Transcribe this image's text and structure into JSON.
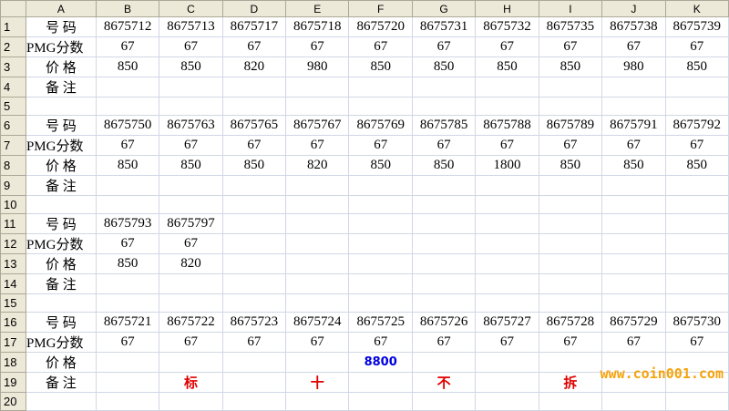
{
  "columns": [
    "A",
    "B",
    "C",
    "D",
    "E",
    "F",
    "G",
    "H",
    "I",
    "J",
    "K"
  ],
  "rows": [
    [
      "号  码",
      "8675712",
      "8675713",
      "8675717",
      "8675718",
      "8675720",
      "8675731",
      "8675732",
      "8675735",
      "8675738",
      "8675739"
    ],
    [
      "PMG分数",
      "67",
      "67",
      "67",
      "67",
      "67",
      "67",
      "67",
      "67",
      "67",
      "67"
    ],
    [
      "价  格",
      "850",
      "850",
      "820",
      "980",
      "850",
      "850",
      "850",
      "850",
      "980",
      "850"
    ],
    [
      "备  注",
      "",
      "",
      "",
      "",
      "",
      "",
      "",
      "",
      "",
      ""
    ],
    [
      "",
      "",
      "",
      "",
      "",
      "",
      "",
      "",
      "",
      "",
      ""
    ],
    [
      "号  码",
      "8675750",
      "8675763",
      "8675765",
      "8675767",
      "8675769",
      "8675785",
      "8675788",
      "8675789",
      "8675791",
      "8675792"
    ],
    [
      "PMG分数",
      "67",
      "67",
      "67",
      "67",
      "67",
      "67",
      "67",
      "67",
      "67",
      "67"
    ],
    [
      "价  格",
      "850",
      "850",
      "850",
      "820",
      "850",
      "850",
      "1800",
      "850",
      "850",
      "850"
    ],
    [
      "备  注",
      "",
      "",
      "",
      "",
      "",
      "",
      "",
      "",
      "",
      ""
    ],
    [
      "",
      "",
      "",
      "",
      "",
      "",
      "",
      "",
      "",
      "",
      ""
    ],
    [
      "号  码",
      "8675793",
      "8675797",
      "",
      "",
      "",
      "",
      "",
      "",
      "",
      ""
    ],
    [
      "PMG分数",
      "67",
      "67",
      "",
      "",
      "",
      "",
      "",
      "",
      "",
      ""
    ],
    [
      "价  格",
      "850",
      "820",
      "",
      "",
      "",
      "",
      "",
      "",
      "",
      ""
    ],
    [
      "备  注",
      "",
      "",
      "",
      "",
      "",
      "",
      "",
      "",
      "",
      ""
    ],
    [
      "",
      "",
      "",
      "",
      "",
      "",
      "",
      "",
      "",
      "",
      ""
    ],
    [
      "号  码",
      "8675721",
      "8675722",
      "8675723",
      "8675724",
      "8675725",
      "8675726",
      "8675727",
      "8675728",
      "8675729",
      "8675730"
    ],
    [
      "PMG分数",
      "67",
      "67",
      "67",
      "67",
      "67",
      "67",
      "67",
      "67",
      "67",
      "67"
    ],
    [
      "价  格",
      "",
      "",
      "",
      "",
      "8800",
      "",
      "",
      "",
      "",
      ""
    ],
    [
      "备  注",
      "",
      "标",
      "",
      "十",
      "",
      "不",
      "",
      "拆",
      "",
      ""
    ],
    [
      "",
      "",
      "",
      "",
      "",
      "",
      "",
      "",
      "",
      "",
      ""
    ]
  ],
  "highlight": {
    "blue": [
      "18-F"
    ],
    "red": [
      "19-C",
      "19-E",
      "19-G",
      "19-I"
    ],
    "blue_color": "#0000e0",
    "red_color": "#e00000"
  },
  "watermark": "www.coin001.com"
}
